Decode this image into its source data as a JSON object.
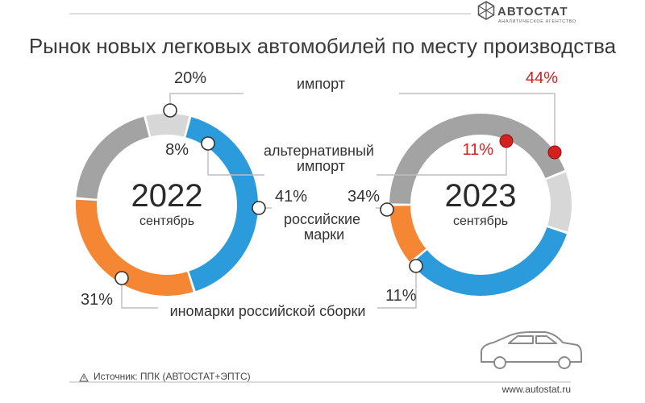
{
  "title": "Рынок новых легковых автомобилей по месту производства",
  "logo": {
    "name": "АВТОСТАТ",
    "subtitle": "АНАЛИТИЧЕСКОЕ АГЕНТСТВО"
  },
  "footer": {
    "source": "Источник: ППК (АВТОСТАТ+ЭПТС)",
    "url": "www.autostat.ru"
  },
  "colors": {
    "import": "#a3a3a3",
    "alternative_import": "#d7d7d7",
    "russian_brands": "#2b9bdc",
    "foreign_brands_russian_assembly": "#f58634",
    "highlight": "#d5201f"
  },
  "chart_data": {
    "type": "donut",
    "categories": [
      {
        "key": "import",
        "label": "импорт"
      },
      {
        "key": "alternative_import",
        "label": "альтернативный импорт"
      },
      {
        "key": "russian_brands",
        "label": "российские марки"
      },
      {
        "key": "foreign_brands_russian_assembly",
        "label": "иномарки российской сборки"
      }
    ],
    "unit": "%",
    "charts": [
      {
        "year": "2022",
        "period": "сентябрь",
        "values": {
          "import": 20,
          "alternative_import": 8,
          "russian_brands": 41,
          "foreign_brands_russian_assembly": 31
        },
        "labels": {
          "import": "20%",
          "alternative_import": "8%",
          "russian_brands": "41%",
          "foreign_brands_russian_assembly": "31%"
        }
      },
      {
        "year": "2023",
        "period": "сентябрь",
        "values": {
          "import": 44,
          "alternative_import": 11,
          "russian_brands": 34,
          "foreign_brands_russian_assembly": 11
        },
        "labels": {
          "import": "44%",
          "alternative_import": "11%",
          "russian_brands": "34%",
          "foreign_brands_russian_assembly": "11%"
        },
        "highlighted": [
          "import",
          "alternative_import"
        ]
      }
    ]
  }
}
